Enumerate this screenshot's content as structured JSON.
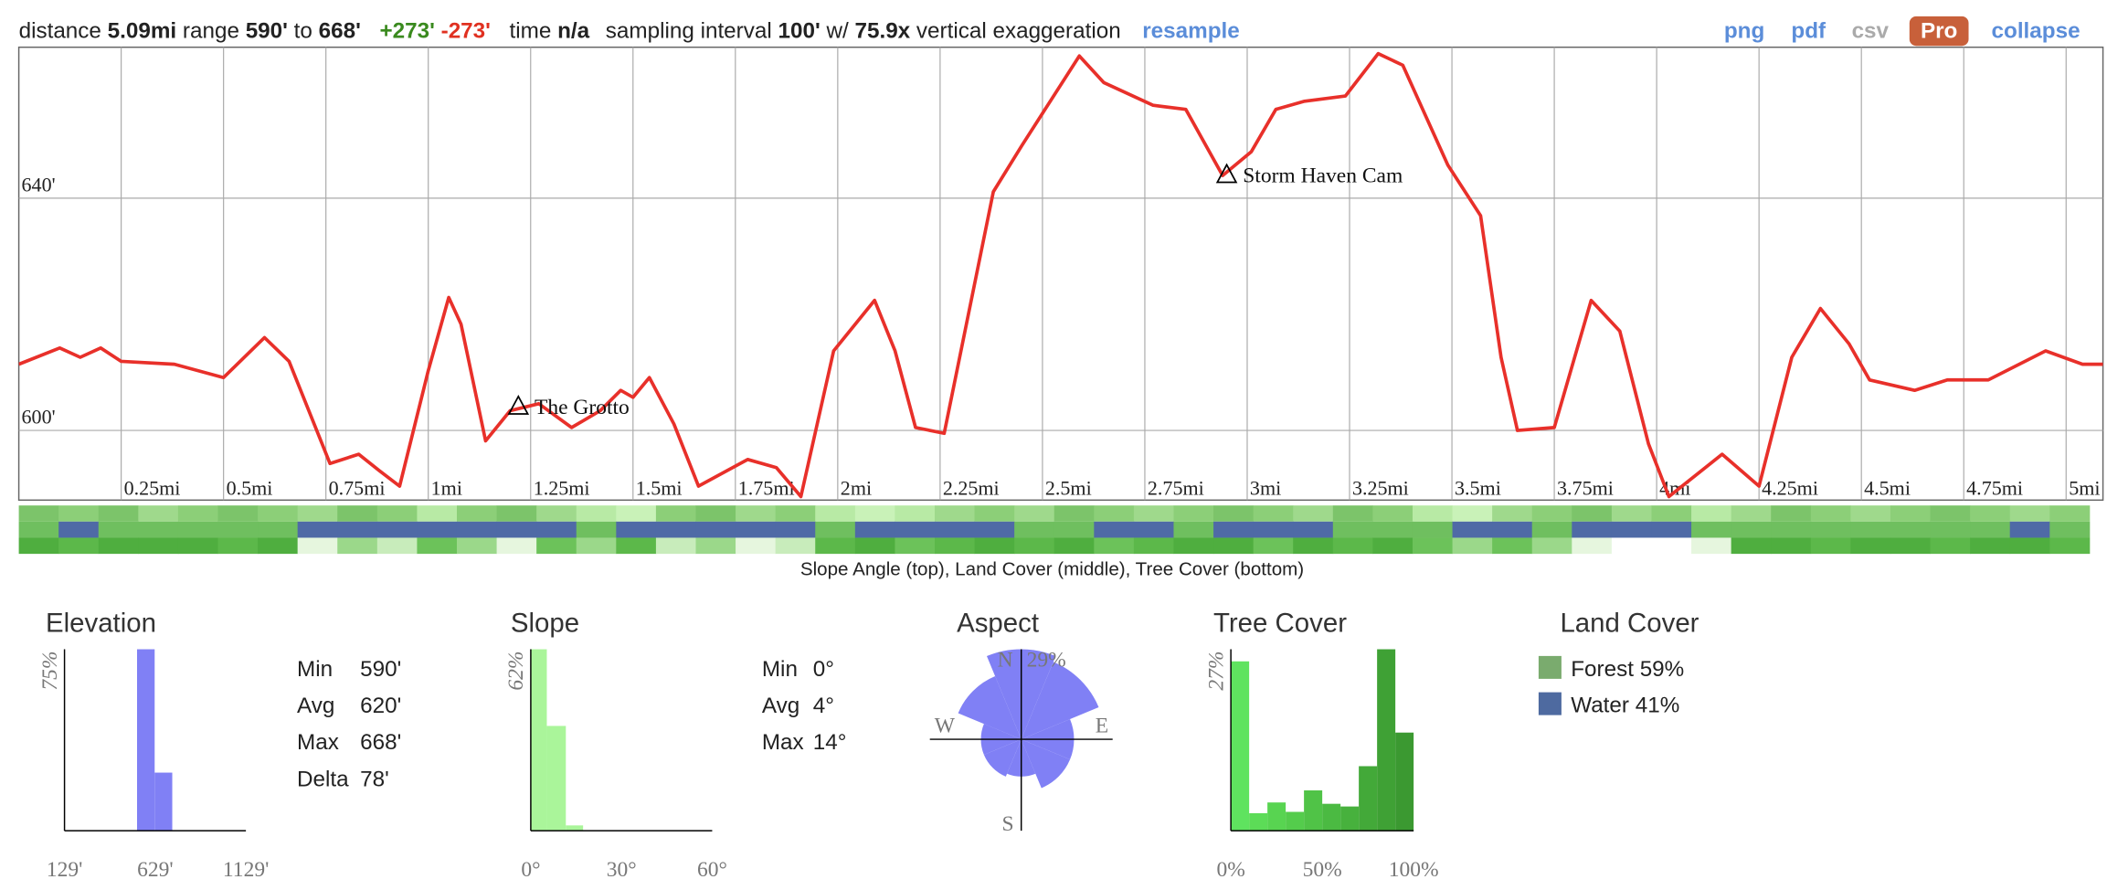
{
  "header": {
    "distance_label": "distance",
    "distance": "5.09mi",
    "range_label": "range",
    "range_min": "590'",
    "to": "to",
    "range_max": "668'",
    "gain": "+273'",
    "loss": "-273'",
    "time_label": "time",
    "time": "n/a",
    "interval_label": "sampling interval",
    "interval": "100'",
    "with": "w/",
    "exaggeration": "75.9x",
    "exaggeration_label": "vertical exaggeration",
    "resample": "resample",
    "links": [
      "png",
      "pdf",
      "csv"
    ],
    "pro": "Pro",
    "collapse": "collapse"
  },
  "profile": {
    "type": "line",
    "color": "#e8302a",
    "x": [
      0,
      0.1,
      0.15,
      0.2,
      0.25,
      0.38,
      0.5,
      0.6,
      0.66,
      0.76,
      0.83,
      0.88,
      0.93,
      1.0,
      1.05,
      1.08,
      1.14,
      1.2,
      1.27,
      1.35,
      1.42,
      1.47,
      1.5,
      1.54,
      1.6,
      1.66,
      1.78,
      1.85,
      1.91,
      1.99,
      2.09,
      2.14,
      2.19,
      2.26,
      2.38,
      2.45,
      2.59,
      2.65,
      2.77,
      2.85,
      2.94,
      3.01,
      3.07,
      3.14,
      3.24,
      3.32,
      3.38,
      3.49,
      3.57,
      3.62,
      3.66,
      3.75,
      3.84,
      3.91,
      3.98,
      4.03,
      4.16,
      4.25,
      4.33,
      4.4,
      4.47,
      4.52,
      4.63,
      4.71,
      4.81,
      4.95,
      5.04,
      5.09
    ],
    "values": [
      611.4,
      614.2,
      612.6,
      614.2,
      611.9,
      611.4,
      609.1,
      616,
      611.9,
      594.3,
      595.9,
      593.1,
      590.4,
      610.3,
      622.9,
      618.3,
      598.2,
      603.4,
      604.6,
      600.5,
      603.4,
      606.9,
      605.7,
      609.1,
      601.1,
      590.4,
      595,
      593.6,
      588.6,
      613.7,
      622.4,
      613.7,
      600.5,
      599.5,
      641.1,
      649.1,
      664.5,
      659.9,
      656,
      655.3,
      643.9,
      648,
      655.3,
      656.7,
      657.6,
      664.9,
      662.9,
      645.7,
      637,
      612.6,
      600,
      600.5,
      622.4,
      617.1,
      597.7,
      588.6,
      595.9,
      590.4,
      612.6,
      621,
      614.9,
      608.7,
      606.9,
      608.7,
      608.7,
      613.7,
      611.4,
      611.4
    ],
    "xlim": [
      0,
      5.09
    ],
    "ylim": [
      588,
      666
    ],
    "xticks": [
      {
        "value": 0.25,
        "label": "0.25mi"
      },
      {
        "value": 0.5,
        "label": "0.5mi"
      },
      {
        "value": 0.75,
        "label": "0.75mi"
      },
      {
        "value": 1,
        "label": "1mi"
      },
      {
        "value": 1.25,
        "label": "1.25mi"
      },
      {
        "value": 1.5,
        "label": "1.5mi"
      },
      {
        "value": 1.75,
        "label": "1.75mi"
      },
      {
        "value": 2,
        "label": "2mi"
      },
      {
        "value": 2.25,
        "label": "2.25mi"
      },
      {
        "value": 2.5,
        "label": "2.5mi"
      },
      {
        "value": 2.75,
        "label": "2.75mi"
      },
      {
        "value": 3,
        "label": "3mi"
      },
      {
        "value": 3.25,
        "label": "3.25mi"
      },
      {
        "value": 3.5,
        "label": "3.5mi"
      },
      {
        "value": 3.75,
        "label": "3.75mi"
      },
      {
        "value": 4,
        "label": "4mi"
      },
      {
        "value": 4.25,
        "label": "4.25mi"
      },
      {
        "value": 4.5,
        "label": "4.5mi"
      },
      {
        "value": 4.75,
        "label": "4.75mi"
      },
      {
        "value": 5,
        "label": "5mi"
      }
    ],
    "yticks": [
      {
        "value": 600,
        "label": "600'"
      },
      {
        "value": 640,
        "label": "640'"
      }
    ],
    "grid": true,
    "waypoints": [
      {
        "name": "The Grotto",
        "x": 1.22,
        "y": 604
      },
      {
        "name": "Storm Haven Cam",
        "x": 2.95,
        "y": 643.9
      }
    ]
  },
  "strips": {
    "caption": "Slope Angle (top), Land Cover (middle), Tree Cover (bottom)",
    "rows": [
      [
        "#7cc46a",
        "#8ccf78",
        "#7cc46a",
        "#9fd98c",
        "#8ccf78",
        "#7cc46a",
        "#8ccf78",
        "#9fd98c",
        "#7cc46a",
        "#8ccf78",
        "#b8eaa5",
        "#8ccf78",
        "#7cc46a",
        "#9fd98c",
        "#b8eaa5",
        "#c9f2b8",
        "#8ccf78",
        "#7cc46a",
        "#9fd98c",
        "#8ccf78",
        "#b8eaa5",
        "#c9f2b8",
        "#b8eaa5",
        "#9fd98c",
        "#8ccf78",
        "#9fd98c",
        "#7cc46a",
        "#8ccf78",
        "#9fd98c",
        "#8ccf78",
        "#7cc46a",
        "#8ccf78",
        "#9fd98c",
        "#7cc46a",
        "#8ccf78",
        "#b8eaa5",
        "#c9f2b8",
        "#9fd98c",
        "#8ccf78",
        "#7cc46a",
        "#9fd98c",
        "#8ccf78",
        "#b8eaa5",
        "#9fd98c",
        "#7cc46a",
        "#8ccf78",
        "#9fd98c",
        "#8ccf78",
        "#7cc46a",
        "#8ccf78",
        "#9fd98c",
        "#8ccf78"
      ],
      [
        "#6fbf5f",
        "#4f6aa6",
        "#6fbf5f",
        "#6fbf5f",
        "#6fbf5f",
        "#6fbf5f",
        "#6fbf5f",
        "#4f6aa6",
        "#4f6aa6",
        "#4f6aa6",
        "#4f6aa6",
        "#4f6aa6",
        "#4f6aa6",
        "#4f6aa6",
        "#6fbf5f",
        "#4f6aa6",
        "#4f6aa6",
        "#4f6aa6",
        "#4f6aa6",
        "#4f6aa6",
        "#6fbf5f",
        "#4f6aa6",
        "#4f6aa6",
        "#4f6aa6",
        "#4f6aa6",
        "#6fbf5f",
        "#6fbf5f",
        "#4f6aa6",
        "#4f6aa6",
        "#6fbf5f",
        "#4f6aa6",
        "#4f6aa6",
        "#4f6aa6",
        "#6fbf5f",
        "#6fbf5f",
        "#6fbf5f",
        "#4f6aa6",
        "#4f6aa6",
        "#6fbf5f",
        "#4f6aa6",
        "#4f6aa6",
        "#4f6aa6",
        "#6fbf5f",
        "#6fbf5f",
        "#6fbf5f",
        "#6fbf5f",
        "#6fbf5f",
        "#6fbf5f",
        "#6fbf5f",
        "#6fbf5f",
        "#4f6aa6",
        "#6fbf5f"
      ],
      [
        "#4fae3f",
        "#5cb84a",
        "#4fae3f",
        "#4fae3f",
        "#4fae3f",
        "#5cb84a",
        "#4fae3f",
        "#e6f6de",
        "#9bd88a",
        "#c8ecbb",
        "#6cc25a",
        "#9bd88a",
        "#e6f6de",
        "#6cc25a",
        "#9bd88a",
        "#5cb84a",
        "#c8ecbb",
        "#9bd88a",
        "#e6f6de",
        "#c8ecbb",
        "#5cb84a",
        "#4fae3f",
        "#6cc25a",
        "#5cb84a",
        "#4fae3f",
        "#5cb84a",
        "#4fae3f",
        "#6cc25a",
        "#5cb84a",
        "#4fae3f",
        "#4fae3f",
        "#6cc25a",
        "#4fae3f",
        "#5cb84a",
        "#4fae3f",
        "#6cc25a",
        "#9bd88a",
        "#6cc25a",
        "#9bd88a",
        "#e6f6de",
        "#ffffff",
        "#ffffff",
        "#e6f6de",
        "#4fae3f",
        "#4fae3f",
        "#5cb84a",
        "#4fae3f",
        "#4fae3f",
        "#5cb84a",
        "#4fae3f",
        "#4fae3f",
        "#5cb84a"
      ]
    ]
  },
  "elevation": {
    "title": "Elevation",
    "type": "histogram",
    "color": "#8080f5",
    "bins": [
      529,
      626,
      723
    ],
    "counts": [
      75,
      24
    ],
    "xlim": [
      129,
      1129
    ],
    "ylim": [
      0,
      75
    ],
    "xticks": [
      {
        "value": 129,
        "label": "129'"
      },
      {
        "value": 629,
        "label": "629'"
      },
      {
        "value": 1129,
        "label": "1129'"
      }
    ],
    "yticks": [
      {
        "value": 75,
        "label": "75%"
      }
    ],
    "stats": [
      {
        "label": "Min",
        "value": "590'"
      },
      {
        "label": "Avg",
        "value": "620'"
      },
      {
        "label": "Max",
        "value": "668'"
      },
      {
        "label": "Delta",
        "value": "78'"
      }
    ]
  },
  "slope": {
    "title": "Slope",
    "type": "histogram",
    "color": "#aaf59a",
    "bins": [
      0,
      5.3,
      11.6,
      17.3
    ],
    "counts": [
      62,
      35.8,
      1.8
    ],
    "xlim": [
      0,
      60
    ],
    "ylim": [
      0,
      62
    ],
    "xticks": [
      {
        "value": 0,
        "label": "0°"
      },
      {
        "value": 30,
        "label": "30°"
      },
      {
        "value": 60,
        "label": "60°"
      }
    ],
    "yticks": [
      {
        "value": 62,
        "label": "62%"
      }
    ],
    "stats": [
      {
        "label": "Min",
        "value": "0°"
      },
      {
        "label": "Avg",
        "value": "4°"
      },
      {
        "label": "Max",
        "value": "14°"
      }
    ]
  },
  "aspect": {
    "title": "Aspect",
    "type": "rose",
    "color": "#8080f5",
    "values": [
      29,
      27,
      17,
      17,
      12,
      13,
      13,
      22
    ],
    "rlim": [
      0,
      29
    ],
    "rticks": [
      {
        "value": 29,
        "label": "29%"
      }
    ],
    "directions": [
      "N",
      "E",
      "S",
      "W"
    ]
  },
  "tree_cover": {
    "title": "Tree Cover",
    "type": "histogram",
    "colors": [
      "#5fe35f",
      "#5cdc57",
      "#58d451",
      "#54cc4c",
      "#50c347",
      "#4bba42",
      "#47b13d",
      "#43a939",
      "#3fa135",
      "#3b9931"
    ],
    "bins": [
      0,
      10,
      20,
      30,
      40,
      50,
      60,
      70,
      80,
      90,
      100
    ],
    "counts": [
      25.2,
      2.6,
      4.2,
      2.8,
      6,
      4,
      3.6,
      9.6,
      27,
      14.6
    ],
    "xlim": [
      0,
      100
    ],
    "ylim": [
      0,
      27
    ],
    "xticks": [
      {
        "value": 0,
        "label": "0%"
      },
      {
        "value": 50,
        "label": "50%"
      },
      {
        "value": 100,
        "label": "100%"
      }
    ],
    "yticks": [
      {
        "value": 27,
        "label": "27%"
      }
    ]
  },
  "land_cover": {
    "title": "Land Cover",
    "items": [
      {
        "name": "Forest",
        "percent": "59%",
        "color": "#7aab6e"
      },
      {
        "name": "Water",
        "percent": "41%",
        "color": "#4e6aa0"
      }
    ]
  }
}
